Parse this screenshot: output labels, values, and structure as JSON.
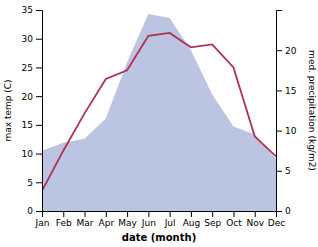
{
  "chart_data": {
    "type": "line",
    "categories": [
      "Jan",
      "Feb",
      "Mar",
      "Apr",
      "May",
      "Jun",
      "Jul",
      "Aug",
      "Sep",
      "Oct",
      "Nov",
      "Dec"
    ],
    "series": [
      {
        "type": "area",
        "color": "#bbc4e0",
        "axis": "y2",
        "values": [
          7.5,
          8.5,
          9.0,
          11.5,
          18.5,
          24.5,
          24.0,
          20.0,
          14.5,
          10.5,
          9.5,
          6.5
        ]
      },
      {
        "type": "line",
        "color": "#b03050",
        "values": [
          3.5,
          10.5,
          17.0,
          23.0,
          24.5,
          30.5,
          31.0,
          28.5,
          29.0,
          25.0,
          13.0,
          9.5
        ]
      }
    ],
    "xlabel": "date (month)",
    "ylabel": "max temp (C)",
    "y2label": "med. precipitation (kg/m2)",
    "ylim": [
      0,
      35
    ],
    "yticks": [
      0,
      5,
      10,
      15,
      20,
      25,
      30,
      35
    ],
    "y2lim": [
      0,
      25
    ],
    "y2ticks": [
      0,
      5,
      10,
      15,
      20
    ]
  }
}
